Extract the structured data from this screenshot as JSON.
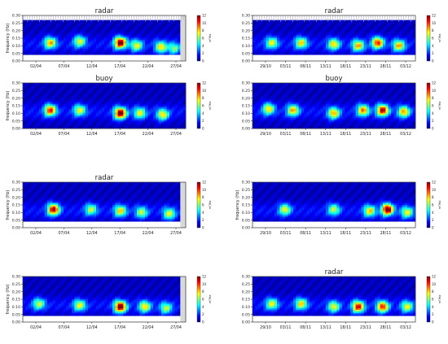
{
  "colors": {
    "jet": [
      "#00007f",
      "#0000ff",
      "#0080ff",
      "#00ffff",
      "#80ff80",
      "#ffff00",
      "#ff8000",
      "#ff0000",
      "#7f0000"
    ],
    "missing": "#d9d9d9",
    "empty": "#ffffff"
  },
  "chart_data": [
    {
      "type": "heatmap",
      "title": "radar",
      "ylabel": "frequency (Hz)",
      "ylim": [
        0,
        0.3
      ],
      "yticks": [
        "0.00",
        "0.05",
        "0.10",
        "0.15",
        "0.20",
        "0.25",
        "0.30"
      ],
      "xticks": [
        "02/04",
        "07/04",
        "12/04",
        "17/04",
        "22/04",
        "27/04"
      ],
      "colorbar": {
        "ticks": [
          "0",
          "2",
          "4",
          "6",
          "8",
          "10",
          "12"
        ],
        "label": "m²/Hz"
      },
      "events": [
        [
          0.17,
          0.12,
          0.6
        ],
        [
          0.35,
          0.13,
          0.5
        ],
        [
          0.6,
          0.12,
          0.95
        ],
        [
          0.7,
          0.1,
          0.5
        ],
        [
          0.85,
          0.09,
          0.55
        ],
        [
          0.93,
          0.08,
          0.4
        ]
      ],
      "cutoff": 0.27,
      "floor": 0.04,
      "hatch_top": true,
      "grey_end": 0.04
    },
    {
      "type": "heatmap",
      "title": "radar",
      "ylabel": "",
      "ylim": [
        0,
        0.3
      ],
      "yticks": [
        "0.00",
        "0.05",
        "0.10",
        "0.15",
        "0.20",
        "0.25",
        "0.30"
      ],
      "xticks": [
        "29/10",
        "03/11",
        "08/11",
        "13/11",
        "18/11",
        "23/11",
        "28/11",
        "03/12"
      ],
      "colorbar": {
        "ticks": [
          "0",
          "2",
          "4",
          "6",
          "8",
          "10",
          "12"
        ],
        "label": "m²/Hz"
      },
      "events": [
        [
          0.12,
          0.12,
          0.5
        ],
        [
          0.3,
          0.12,
          0.55
        ],
        [
          0.5,
          0.11,
          0.55
        ],
        [
          0.65,
          0.1,
          0.6
        ],
        [
          0.77,
          0.12,
          0.75
        ],
        [
          0.9,
          0.1,
          0.6
        ]
      ],
      "cutoff": 0.27,
      "floor": 0.04,
      "hatch_top": true,
      "grey_end": 0.0
    },
    {
      "type": "heatmap",
      "title": "buoy",
      "ylabel": "frequency (Hz)",
      "ylim": [
        0,
        0.3
      ],
      "yticks": [
        "0.00",
        "0.05",
        "0.10",
        "0.15",
        "0.20",
        "0.25",
        "0.30"
      ],
      "xticks": [
        "02/04",
        "07/04",
        "12/04",
        "17/04",
        "22/04",
        "27/04"
      ],
      "colorbar": {
        "ticks": [
          "0",
          "2",
          "4",
          "6",
          "8",
          "10",
          "12"
        ],
        "label": "m²/Hz"
      },
      "events": [
        [
          0.17,
          0.12,
          0.75
        ],
        [
          0.35,
          0.12,
          0.5
        ],
        [
          0.6,
          0.1,
          0.95
        ],
        [
          0.72,
          0.1,
          0.5
        ],
        [
          0.86,
          0.09,
          0.55
        ]
      ],
      "cutoff": 0.3,
      "floor": 0.0,
      "hatch_top": false,
      "grey_end": 0.0
    },
    {
      "type": "heatmap",
      "title": "buoy",
      "ylabel": "",
      "ylim": [
        0,
        0.3
      ],
      "yticks": [
        "0.00",
        "0.05",
        "0.10",
        "0.15",
        "0.20",
        "0.25",
        "0.30"
      ],
      "xticks": [
        "29/10",
        "03/11",
        "08/11",
        "13/11",
        "18/11",
        "23/11",
        "28/11",
        "03/12"
      ],
      "colorbar": {
        "ticks": [
          "0",
          "2",
          "4",
          "6",
          "8",
          "10",
          "12"
        ],
        "label": "m²/Hz"
      },
      "events": [
        [
          0.1,
          0.13,
          0.55
        ],
        [
          0.25,
          0.12,
          0.6
        ],
        [
          0.5,
          0.1,
          0.6
        ],
        [
          0.68,
          0.12,
          0.65
        ],
        [
          0.8,
          0.12,
          0.85
        ],
        [
          0.93,
          0.11,
          0.6
        ]
      ],
      "cutoff": 0.3,
      "floor": 0.0,
      "hatch_top": false,
      "grey_end": 0.0
    },
    {
      "type": "heatmap",
      "title": "radar",
      "ylabel": "frequency (Hz)",
      "ylim": [
        0,
        0.3
      ],
      "yticks": [
        "0.00",
        "0.05",
        "0.10",
        "0.15",
        "0.20",
        "0.25",
        "0.30"
      ],
      "xticks": [
        "02/04",
        "07/04",
        "12/04",
        "17/04",
        "22/04",
        "27/04"
      ],
      "colorbar": {
        "ticks": [
          "0",
          "2",
          "4",
          "6",
          "8",
          "10",
          "12"
        ],
        "label": "m²/Hz"
      },
      "events": [
        [
          0.19,
          0.12,
          0.85
        ],
        [
          0.42,
          0.12,
          0.45
        ],
        [
          0.6,
          0.11,
          0.55
        ],
        [
          0.73,
          0.1,
          0.45
        ],
        [
          0.9,
          0.09,
          0.5
        ]
      ],
      "cutoff": 0.3,
      "floor": 0.04,
      "hatch_top": false,
      "grey_end": 0.04
    },
    {
      "type": "heatmap",
      "title": "",
      "ylabel": "frequency (Hz)",
      "ylim": [
        0,
        0.3
      ],
      "yticks": [
        "0.00",
        "0.05",
        "0.10",
        "0.15",
        "0.20",
        "0.25",
        "0.30"
      ],
      "xticks": [
        "29/10",
        "03/11",
        "08/11",
        "13/11",
        "18/11",
        "23/11",
        "28/11",
        "03/12"
      ],
      "colorbar": {
        "ticks": [
          "0",
          "2",
          "4",
          "6",
          "8",
          "10",
          "12"
        ],
        "label": "m²/Hz"
      },
      "events": [
        [
          0.2,
          0.12,
          0.5
        ],
        [
          0.5,
          0.12,
          0.45
        ],
        [
          0.72,
          0.11,
          0.55
        ],
        [
          0.83,
          0.12,
          0.95
        ],
        [
          0.95,
          0.1,
          0.5
        ]
      ],
      "cutoff": 0.3,
      "floor": 0.04,
      "hatch_top": false,
      "grey_end": 0.0
    },
    {
      "type": "heatmap",
      "title": "",
      "ylabel": "frequency (Hz)",
      "ylim": [
        0,
        0.3
      ],
      "yticks": [
        "0.00",
        "0.05",
        "0.10",
        "0.15",
        "0.20",
        "0.25",
        "0.30"
      ],
      "xticks": [
        "02/04",
        "07/04",
        "12/04",
        "17/04",
        "22/04",
        "27/04"
      ],
      "colorbar": {
        "ticks": [
          "0",
          "2",
          "4",
          "6",
          "8",
          "10",
          "12"
        ],
        "label": "m²/Hz"
      },
      "events": [
        [
          0.1,
          0.12,
          0.45
        ],
        [
          0.35,
          0.11,
          0.5
        ],
        [
          0.6,
          0.1,
          0.95
        ],
        [
          0.75,
          0.1,
          0.55
        ],
        [
          0.88,
          0.09,
          0.45
        ]
      ],
      "cutoff": 0.3,
      "floor": 0.04,
      "hatch_top": false,
      "grey_end": 0.04
    },
    {
      "type": "heatmap",
      "title": "radar",
      "ylabel": "",
      "ylim": [
        0,
        0.3
      ],
      "yticks": [
        "0.00",
        "0.05",
        "0.10",
        "0.15",
        "0.20",
        "0.25",
        "0.30"
      ],
      "xticks": [
        "29/10",
        "03/11",
        "08/11",
        "13/11",
        "18/11",
        "23/11",
        "28/11",
        "03/12"
      ],
      "colorbar": {
        "ticks": [
          "0",
          "2",
          "4",
          "6",
          "8",
          "10",
          "12"
        ],
        "label": "m²/Hz"
      },
      "events": [
        [
          0.12,
          0.12,
          0.5
        ],
        [
          0.3,
          0.12,
          0.55
        ],
        [
          0.5,
          0.1,
          0.5
        ],
        [
          0.65,
          0.1,
          0.8
        ],
        [
          0.8,
          0.1,
          0.75
        ],
        [
          0.95,
          0.1,
          0.5
        ]
      ],
      "cutoff": 0.3,
      "floor": 0.04,
      "hatch_top": false,
      "grey_end": 0.0
    }
  ]
}
